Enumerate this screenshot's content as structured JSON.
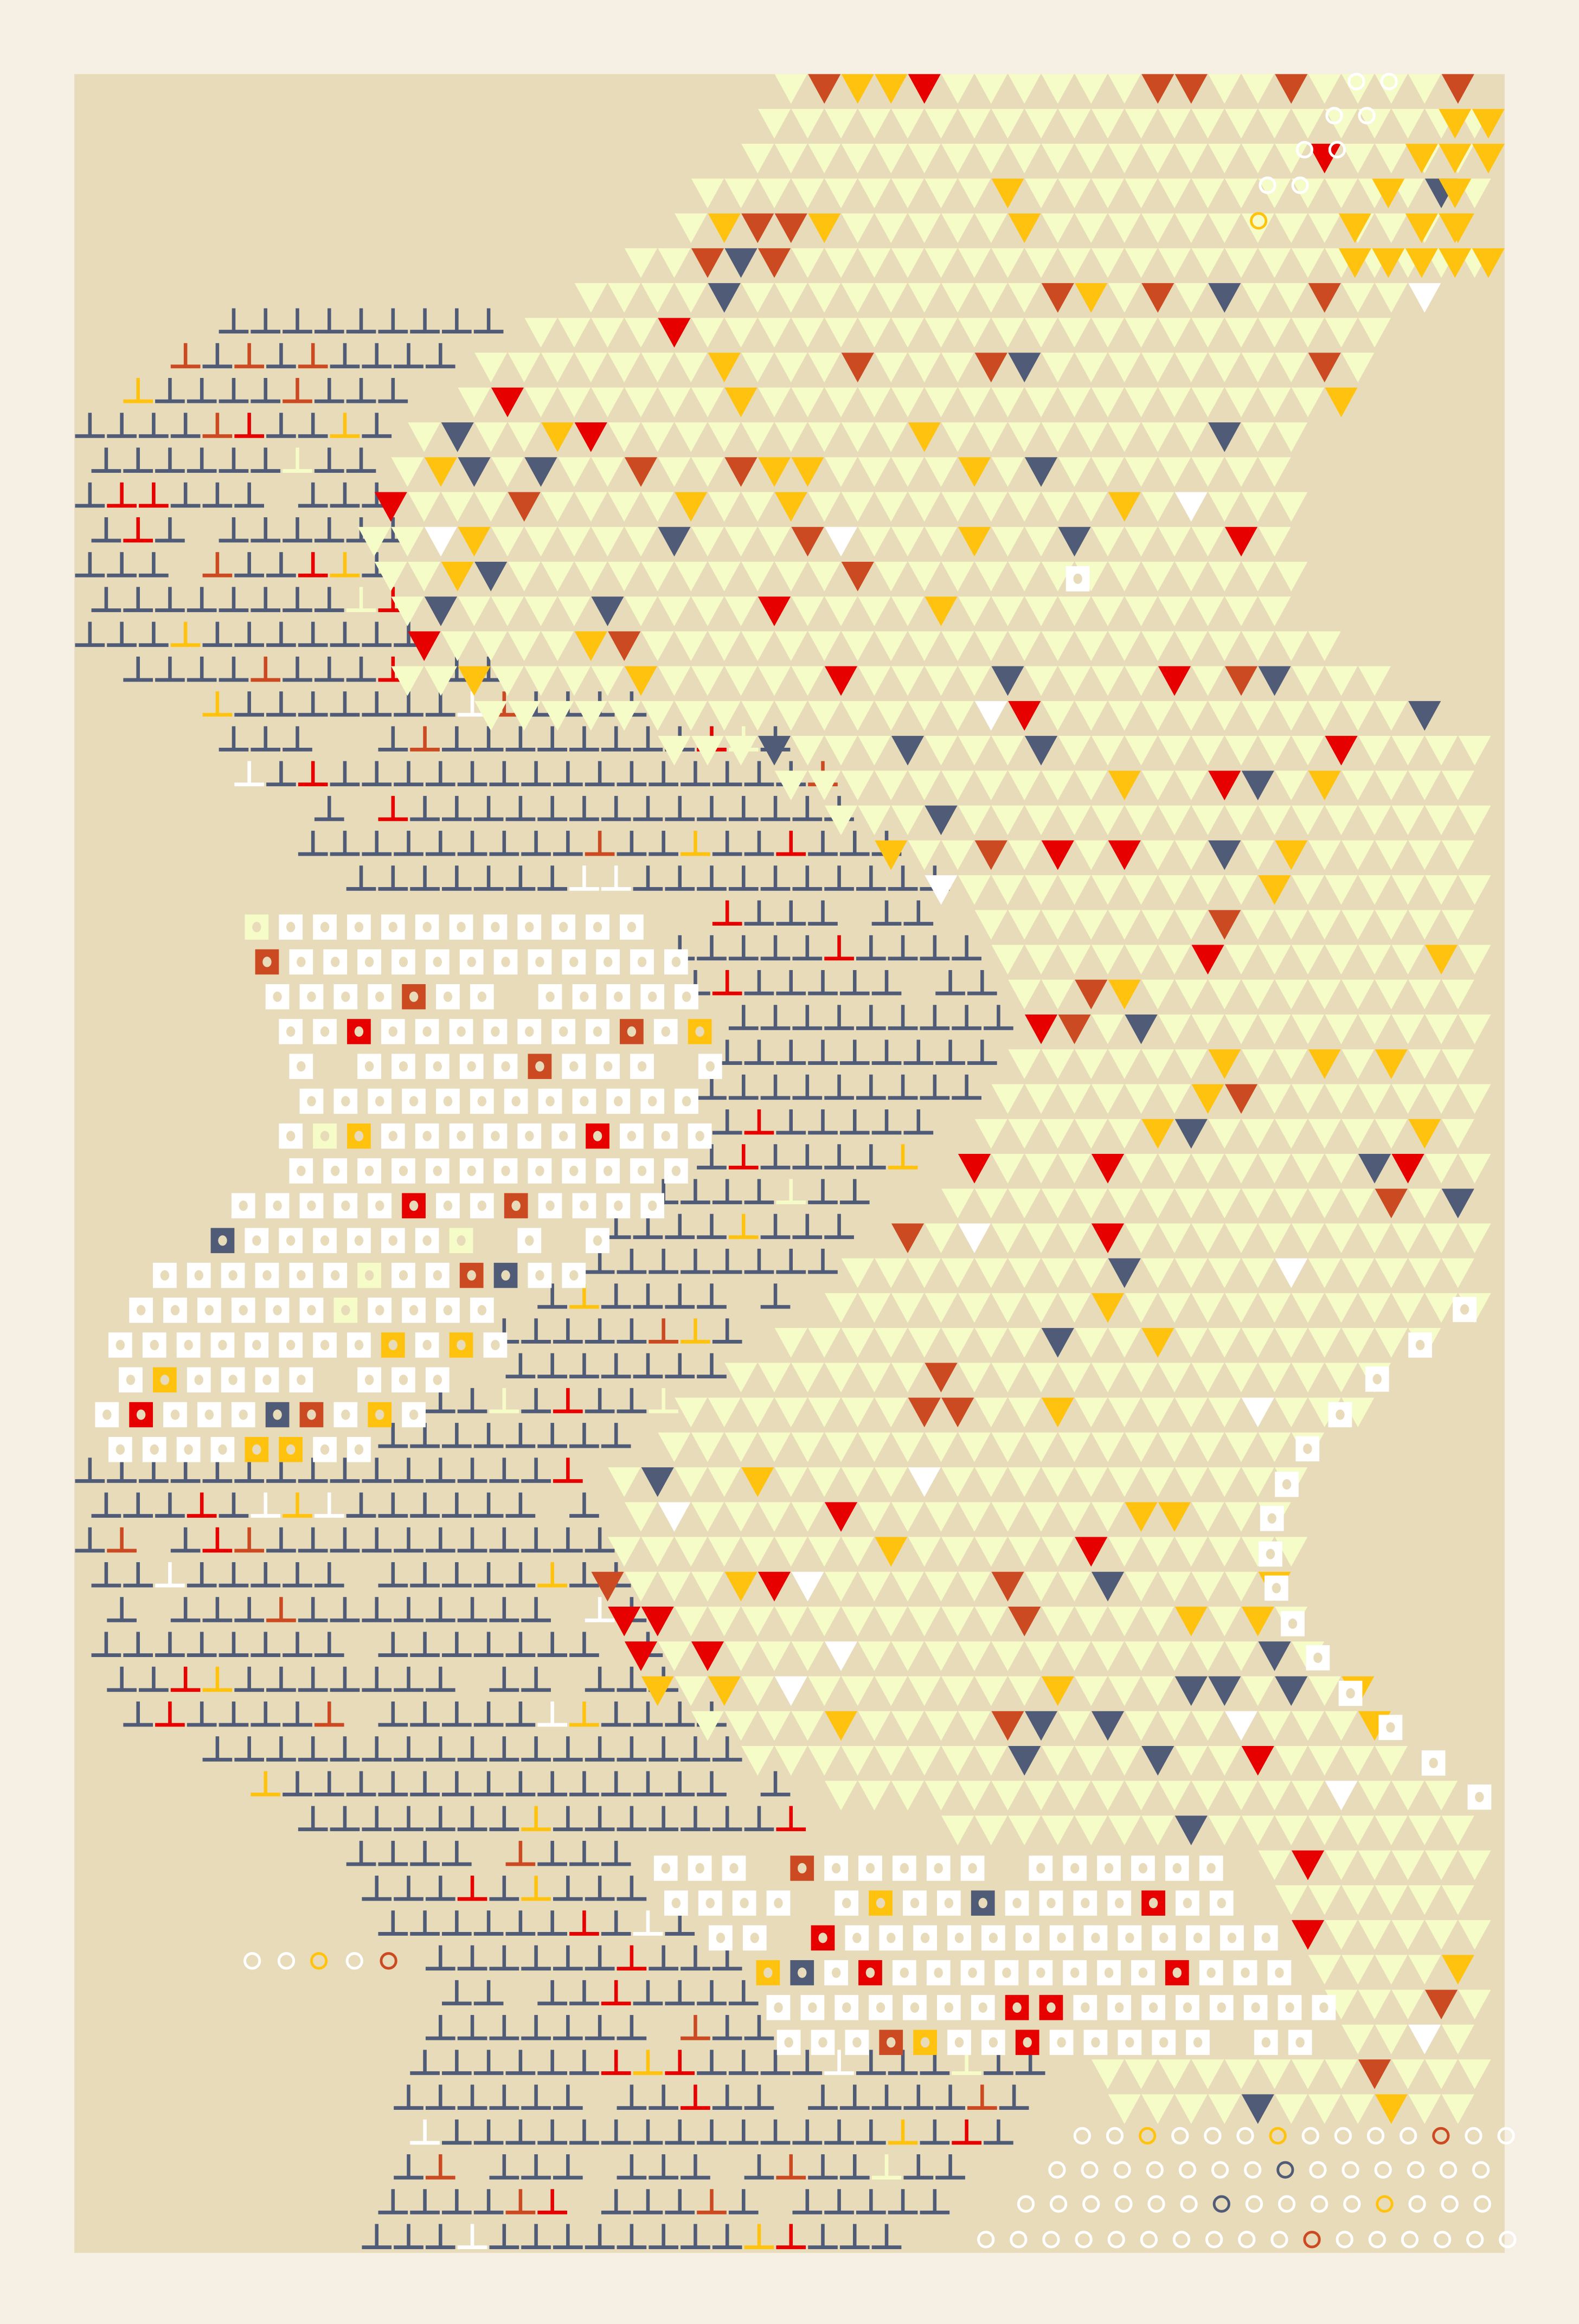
{
  "artwork": {
    "colors": {
      "page_background": "#F6EFE3",
      "panel": "#E8DBB9",
      "pale_yellow": "#F6FCC8",
      "red": "#E60000",
      "rust": "#CC4A22",
      "navy": "#4F5B77",
      "yellow": "#FFC30F",
      "white": "#FFFFFF"
    },
    "motifs": [
      "triangle-grid",
      "t-shape-grid",
      "dotted-square-grid",
      "ring-grid"
    ]
  }
}
